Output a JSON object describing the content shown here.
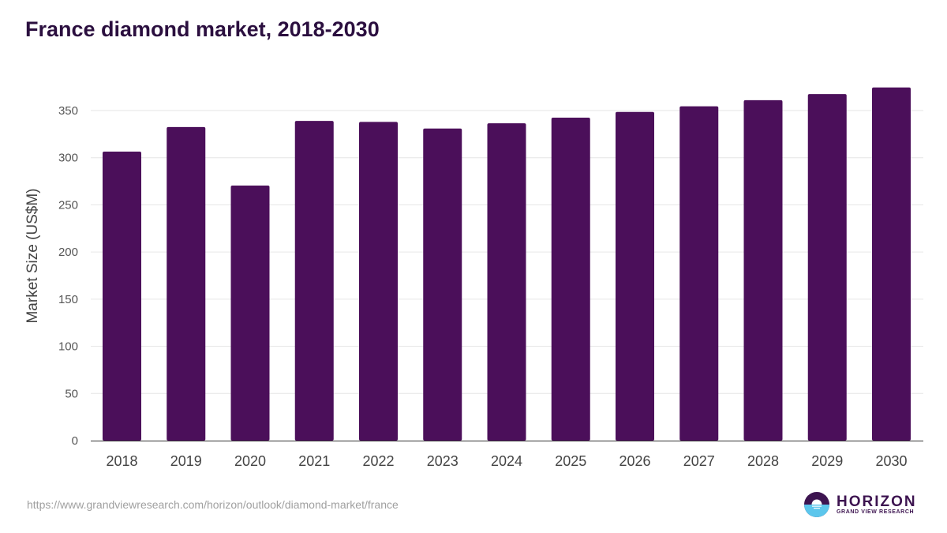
{
  "chart_data": {
    "type": "bar",
    "title": "France diamond market, 2018-2030",
    "xlabel": "",
    "ylabel": "Market Size (US$M)",
    "categories": [
      "2018",
      "2019",
      "2020",
      "2021",
      "2022",
      "2023",
      "2024",
      "2025",
      "2026",
      "2027",
      "2028",
      "2029",
      "2030"
    ],
    "values": [
      306.5,
      332.5,
      270.5,
      339,
      338,
      331,
      336.5,
      342.5,
      348.5,
      354.5,
      361,
      367.5,
      374.5
    ],
    "ylim": [
      0,
      350
    ],
    "yticks": [
      0,
      50,
      100,
      150,
      200,
      250,
      300,
      350
    ],
    "grid": true,
    "bar_color": "#4b0f5a"
  },
  "source": "https://www.grandviewresearch.com/horizon/outlook/diamond-market/france",
  "logo": {
    "word": "HORIZON",
    "sub": "GRAND VIEW RESEARCH"
  }
}
